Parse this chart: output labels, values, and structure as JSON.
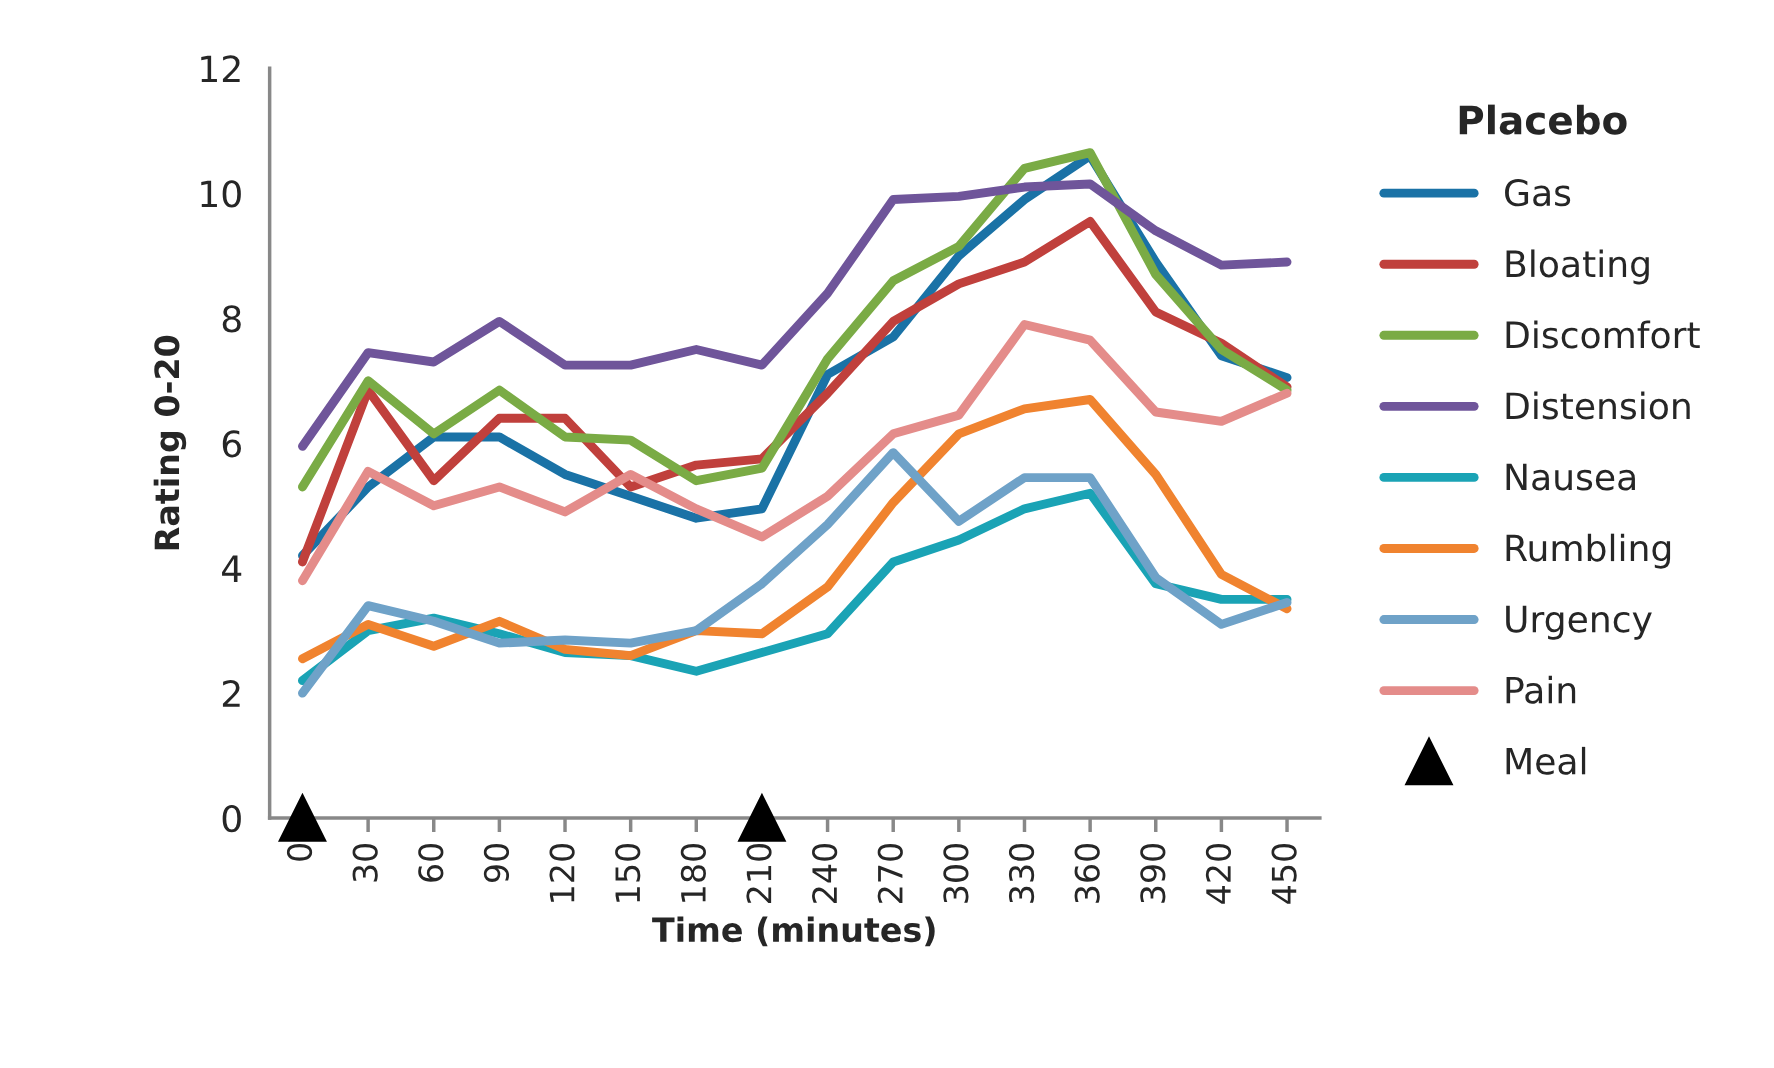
{
  "chart_data": {
    "type": "line",
    "xlabel": "Time (minutes)",
    "ylabel": "Rating 0-20",
    "legend_title": "Placebo",
    "legend": "right",
    "grid": false,
    "marker": "none",
    "line_style": "solid",
    "categories": [
      "0",
      "30",
      "60",
      "90",
      "120",
      "150",
      "180",
      "210",
      "240",
      "270",
      "300",
      "330",
      "360",
      "390",
      "420",
      "450"
    ],
    "ylim": [
      0,
      12
    ],
    "yticks": [
      0,
      2,
      4,
      6,
      8,
      10,
      12
    ],
    "series": [
      {
        "name": "Gas",
        "color": "#1a72a6",
        "values": [
          4.2,
          5.3,
          6.1,
          6.1,
          5.5,
          5.15,
          4.8,
          4.95,
          7.1,
          7.7,
          9.0,
          9.9,
          10.6,
          8.9,
          7.4,
          7.05
        ]
      },
      {
        "name": "Bloating",
        "color": "#c0403c",
        "values": [
          4.1,
          6.85,
          5.4,
          6.4,
          6.4,
          5.3,
          5.65,
          5.75,
          6.8,
          7.95,
          8.55,
          8.9,
          9.55,
          8.1,
          7.6,
          6.9
        ]
      },
      {
        "name": "Discomfort",
        "color": "#7aab45",
        "values": [
          5.3,
          7.0,
          6.15,
          6.85,
          6.1,
          6.05,
          5.4,
          5.6,
          7.35,
          8.6,
          9.15,
          10.4,
          10.65,
          8.7,
          7.5,
          6.85
        ]
      },
      {
        "name": "Distension",
        "color": "#6f559a",
        "values": [
          5.95,
          7.45,
          7.3,
          7.95,
          7.25,
          7.25,
          7.5,
          7.25,
          8.4,
          9.9,
          9.95,
          10.1,
          10.15,
          9.4,
          8.85,
          8.9
        ]
      },
      {
        "name": "Nausea",
        "color": "#1aa3b5",
        "values": [
          2.2,
          3.0,
          3.2,
          2.95,
          2.65,
          2.6,
          2.35,
          2.65,
          2.95,
          4.1,
          4.45,
          4.95,
          5.2,
          3.75,
          3.5,
          3.5
        ]
      },
      {
        "name": "Rumbling",
        "color": "#f0832f",
        "values": [
          2.55,
          3.1,
          2.75,
          3.15,
          2.7,
          2.6,
          3.0,
          2.95,
          3.7,
          5.05,
          6.15,
          6.55,
          6.7,
          5.5,
          3.9,
          3.35
        ]
      },
      {
        "name": "Urgency",
        "color": "#6fa2c8",
        "values": [
          2.0,
          3.4,
          3.15,
          2.8,
          2.85,
          2.8,
          3.0,
          3.75,
          4.7,
          5.85,
          4.75,
          5.45,
          5.45,
          3.85,
          3.1,
          3.45
        ]
      },
      {
        "name": "Pain",
        "color": "#e48c8a",
        "values": [
          3.8,
          5.55,
          5.0,
          5.3,
          4.9,
          5.5,
          4.95,
          4.5,
          5.15,
          6.15,
          6.45,
          7.9,
          7.65,
          6.5,
          6.35,
          6.8
        ]
      },
      {
        "name": "Meal",
        "type": "scatter",
        "marker": "triangle",
        "color": "#000000",
        "values": [
          0,
          null,
          null,
          null,
          null,
          null,
          null,
          0,
          null,
          null,
          null,
          null,
          null,
          null,
          null,
          null
        ]
      }
    ]
  }
}
